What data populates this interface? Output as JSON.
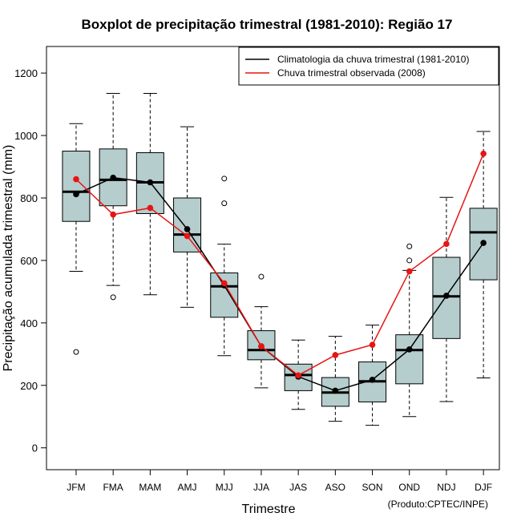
{
  "chart_data": {
    "type": "boxplot",
    "title": "Boxplot de precipitação trimestral (1981-2010): Região 17",
    "xlabel": "Trimestre",
    "ylabel": "Precipitação acumulada trimestral (mm)",
    "ylim": [
      -70,
      1285
    ],
    "yticks": [
      0,
      200,
      400,
      600,
      800,
      1000,
      1200
    ],
    "categories": [
      "JFM",
      "FMA",
      "MAM",
      "AMJ",
      "MJJ",
      "JJA",
      "JAS",
      "ASO",
      "SON",
      "OND",
      "NDJ",
      "DJF"
    ],
    "boxes": [
      {
        "lower_whisker": 565,
        "q1": 725,
        "median": 820,
        "q3": 950,
        "upper_whisker": 1038,
        "outliers": [
          307
        ]
      },
      {
        "lower_whisker": 520,
        "q1": 775,
        "median": 858,
        "q3": 957,
        "upper_whisker": 1135,
        "outliers": [
          482
        ]
      },
      {
        "lower_whisker": 490,
        "q1": 750,
        "median": 850,
        "q3": 945,
        "upper_whisker": 1135,
        "outliers": []
      },
      {
        "lower_whisker": 450,
        "q1": 627,
        "median": 683,
        "q3": 800,
        "upper_whisker": 1028,
        "outliers": []
      },
      {
        "lower_whisker": 295,
        "q1": 418,
        "median": 517,
        "q3": 560,
        "upper_whisker": 652,
        "outliers": [
          783,
          862
        ]
      },
      {
        "lower_whisker": 192,
        "q1": 282,
        "median": 313,
        "q3": 375,
        "upper_whisker": 452,
        "outliers": [
          548
        ]
      },
      {
        "lower_whisker": 123,
        "q1": 183,
        "median": 233,
        "q3": 268,
        "upper_whisker": 345,
        "outliers": []
      },
      {
        "lower_whisker": 85,
        "q1": 133,
        "median": 177,
        "q3": 225,
        "upper_whisker": 357,
        "outliers": []
      },
      {
        "lower_whisker": 72,
        "q1": 147,
        "median": 213,
        "q3": 275,
        "upper_whisker": 393,
        "outliers": []
      },
      {
        "lower_whisker": 100,
        "q1": 205,
        "median": 313,
        "q3": 362,
        "upper_whisker": 568,
        "outliers": [
          600,
          645
        ]
      },
      {
        "lower_whisker": 148,
        "q1": 350,
        "median": 485,
        "q3": 610,
        "upper_whisker": 802,
        "outliers": []
      },
      {
        "lower_whisker": 224,
        "q1": 538,
        "median": 690,
        "q3": 767,
        "upper_whisker": 1013,
        "outliers": []
      }
    ],
    "series": [
      {
        "name": "Climatologia da chuva trimestral (1981-2010)",
        "color": "#000000",
        "values": [
          812,
          865,
          850,
          700,
          520,
          325,
          228,
          183,
          218,
          315,
          487,
          656
        ]
      },
      {
        "name": "Chuva trimestral observada (2008)",
        "color": "#e81414",
        "values": [
          860,
          747,
          768,
          678,
          527,
          325,
          232,
          297,
          330,
          565,
          653,
          942
        ]
      }
    ],
    "legend_position": "top-right",
    "box_fill": "#b5cdcd",
    "credit": "(Produto:CPTEC/INPE)"
  }
}
